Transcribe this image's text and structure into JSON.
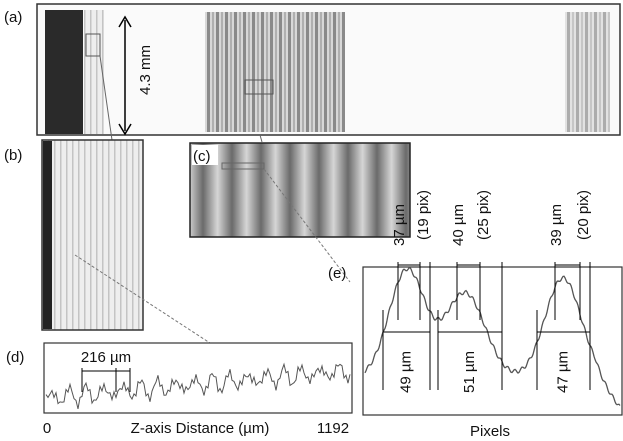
{
  "panels": {
    "a": {
      "label": "(a)",
      "scale": "4.3 mm"
    },
    "b": {
      "label": "(b)"
    },
    "c": {
      "label": "(c)"
    },
    "d": {
      "label": "(d)",
      "spacing": "216 µm",
      "x_start": "0",
      "x_title": "Z-axis Distance (µm)",
      "x_end": "1192"
    },
    "e": {
      "label": "(e)",
      "x_title": "Pixels",
      "peaks": [
        {
          "top": "37 µm",
          "top_pix": "(19 pix)",
          "base": "49 µm"
        },
        {
          "top": "40 µm",
          "top_pix": "(25 pix)",
          "base": "51 µm"
        },
        {
          "top": "39 µm",
          "top_pix": "(20 pix)",
          "base": "47 µm"
        }
      ]
    }
  }
}
